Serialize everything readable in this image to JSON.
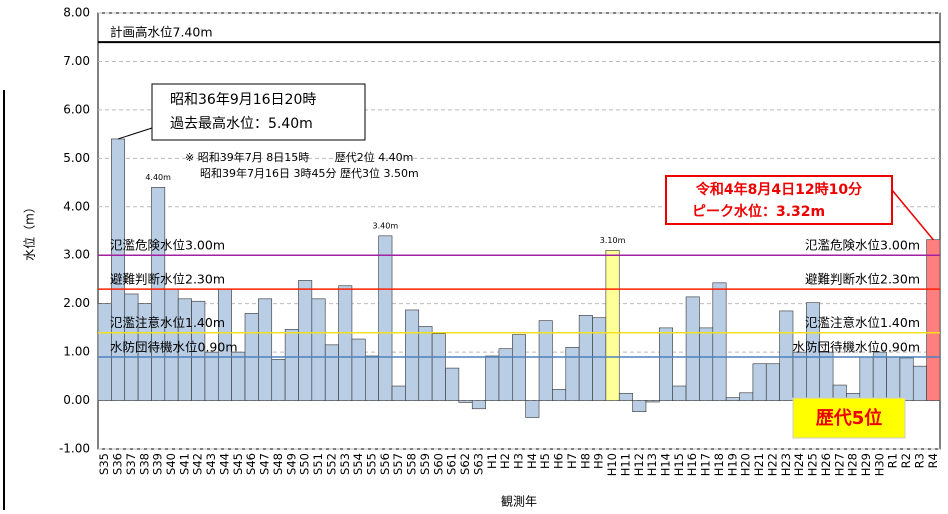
{
  "chart_data": {
    "type": "bar",
    "categories": [
      "S35",
      "S36",
      "S37",
      "S38",
      "S39",
      "S40",
      "S41",
      "S42",
      "S43",
      "S44",
      "S45",
      "S46",
      "S47",
      "S48",
      "S49",
      "S50",
      "S51",
      "S52",
      "S53",
      "S54",
      "S55",
      "S56",
      "S57",
      "S58",
      "S59",
      "S60",
      "S61",
      "S62",
      "S63",
      "H1",
      "H2",
      "H3",
      "H4",
      "H5",
      "H6",
      "H7",
      "H8",
      "H9",
      "H10",
      "H11",
      "H12",
      "H13",
      "H14",
      "H15",
      "H16",
      "H17",
      "H18",
      "H19",
      "H20",
      "H21",
      "H22",
      "H23",
      "H24",
      "H25",
      "H26",
      "H27",
      "H28",
      "H29",
      "H30",
      "R1",
      "R2",
      "R3",
      "R4"
    ],
    "values": [
      2.0,
      5.4,
      2.2,
      2.0,
      4.4,
      2.3,
      2.1,
      2.05,
      1.0,
      2.3,
      1.0,
      1.8,
      2.1,
      0.85,
      1.47,
      2.48,
      2.1,
      1.15,
      2.37,
      1.27,
      0.92,
      3.4,
      0.3,
      1.87,
      1.53,
      1.38,
      0.67,
      -0.04,
      -0.17,
      0.92,
      1.07,
      1.36,
      -0.35,
      1.65,
      0.23,
      1.1,
      1.76,
      1.71,
      3.1,
      0.15,
      -0.23,
      -0.03,
      1.5,
      0.3,
      2.14,
      1.5,
      2.43,
      0.06,
      0.16,
      0.76,
      0.76,
      1.85,
      1.0,
      2.02,
      1.0,
      0.32,
      0.15,
      0.9,
      1.0,
      0.9,
      0.88,
      0.71,
      3.32
    ],
    "value_labels": [
      null,
      null,
      null,
      null,
      "4.40m",
      null,
      null,
      null,
      null,
      null,
      null,
      null,
      null,
      null,
      null,
      null,
      null,
      null,
      null,
      null,
      null,
      "3.40m",
      null,
      null,
      null,
      null,
      null,
      null,
      null,
      null,
      null,
      null,
      null,
      null,
      null,
      null,
      null,
      null,
      "3.10m",
      null,
      null,
      null,
      null,
      null,
      null,
      null,
      null,
      null,
      null,
      null,
      null,
      null,
      null,
      null,
      null,
      null,
      null,
      null,
      null,
      null,
      null,
      null,
      null
    ],
    "color": "#b9cde5",
    "highlights": [
      {
        "category": "H10",
        "color": "#ffff99"
      },
      {
        "category": "R4",
        "color": "#ff7f7f"
      }
    ],
    "ylim": [
      -1,
      8
    ],
    "yticks": [
      {
        "value": -1,
        "label": "-1.00"
      },
      {
        "value": 0,
        "label": "0.00"
      },
      {
        "value": 1,
        "label": "1.00"
      },
      {
        "value": 2,
        "label": "2.00"
      },
      {
        "value": 3,
        "label": "3.00"
      },
      {
        "value": 4,
        "label": "4.00"
      },
      {
        "value": 5,
        "label": "5.00"
      },
      {
        "value": 6,
        "label": "6.00"
      },
      {
        "value": 7,
        "label": "7.00"
      },
      {
        "value": 8,
        "label": "8.00"
      }
    ],
    "y_label": "水位（m）",
    "x_label": "観測年",
    "reference_lines": [
      {
        "label": "計画高水位7.40m",
        "value": 7.4,
        "color": "#000000",
        "right": false
      },
      {
        "label": "氾濫危険水位3.00m",
        "value": 3.0,
        "color": "#a020a0",
        "right": true
      },
      {
        "label": "避難判断水位2.30m",
        "value": 2.3,
        "color": "#ff2000",
        "right": true
      },
      {
        "label": "氾濫注意水位1.40m",
        "value": 1.4,
        "color": "#f0e020",
        "right": true
      },
      {
        "label": "水防団待機水位0.90m",
        "value": 0.9,
        "color": "#4f81bd",
        "right": true
      }
    ],
    "annotations": {
      "record_date": "昭和36年9月16日20時",
      "record_level": "過去最高水位：5.40m",
      "note_1": "※ 昭和39年7月 8日15時　　 歴代2位 4.40m",
      "note_2": "昭和39年7月16日 3時45分 歴代3位 3.50m",
      "peak_date": "令和4年8月4日12時10分",
      "peak_level": "ピーク水位：3.32m",
      "rank": "歴代5位"
    }
  }
}
